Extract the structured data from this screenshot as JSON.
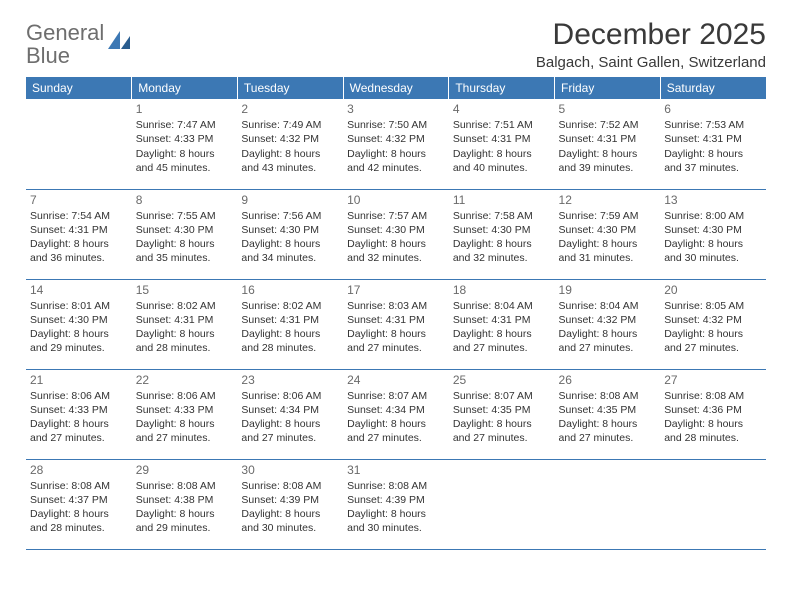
{
  "logo": {
    "text_gray": "General",
    "text_blue": "Blue"
  },
  "header": {
    "title": "December 2025",
    "subtitle": "Balgach, Saint Gallen, Switzerland"
  },
  "colors": {
    "header_bg": "#3c78b4",
    "header_fg": "#ffffff",
    "rule": "#3c78b4",
    "text": "#333333",
    "daynum": "#6a6a6a",
    "logo_gray": "#6e6e6e",
    "logo_blue": "#3c78b4"
  },
  "day_labels": [
    "Sunday",
    "Monday",
    "Tuesday",
    "Wednesday",
    "Thursday",
    "Friday",
    "Saturday"
  ],
  "weeks": [
    [
      null,
      {
        "n": "1",
        "sr": "7:47 AM",
        "ss": "4:33 PM",
        "dl": "8 hours and 45 minutes."
      },
      {
        "n": "2",
        "sr": "7:49 AM",
        "ss": "4:32 PM",
        "dl": "8 hours and 43 minutes."
      },
      {
        "n": "3",
        "sr": "7:50 AM",
        "ss": "4:32 PM",
        "dl": "8 hours and 42 minutes."
      },
      {
        "n": "4",
        "sr": "7:51 AM",
        "ss": "4:31 PM",
        "dl": "8 hours and 40 minutes."
      },
      {
        "n": "5",
        "sr": "7:52 AM",
        "ss": "4:31 PM",
        "dl": "8 hours and 39 minutes."
      },
      {
        "n": "6",
        "sr": "7:53 AM",
        "ss": "4:31 PM",
        "dl": "8 hours and 37 minutes."
      }
    ],
    [
      {
        "n": "7",
        "sr": "7:54 AM",
        "ss": "4:31 PM",
        "dl": "8 hours and 36 minutes."
      },
      {
        "n": "8",
        "sr": "7:55 AM",
        "ss": "4:30 PM",
        "dl": "8 hours and 35 minutes."
      },
      {
        "n": "9",
        "sr": "7:56 AM",
        "ss": "4:30 PM",
        "dl": "8 hours and 34 minutes."
      },
      {
        "n": "10",
        "sr": "7:57 AM",
        "ss": "4:30 PM",
        "dl": "8 hours and 32 minutes."
      },
      {
        "n": "11",
        "sr": "7:58 AM",
        "ss": "4:30 PM",
        "dl": "8 hours and 32 minutes."
      },
      {
        "n": "12",
        "sr": "7:59 AM",
        "ss": "4:30 PM",
        "dl": "8 hours and 31 minutes."
      },
      {
        "n": "13",
        "sr": "8:00 AM",
        "ss": "4:30 PM",
        "dl": "8 hours and 30 minutes."
      }
    ],
    [
      {
        "n": "14",
        "sr": "8:01 AM",
        "ss": "4:30 PM",
        "dl": "8 hours and 29 minutes."
      },
      {
        "n": "15",
        "sr": "8:02 AM",
        "ss": "4:31 PM",
        "dl": "8 hours and 28 minutes."
      },
      {
        "n": "16",
        "sr": "8:02 AM",
        "ss": "4:31 PM",
        "dl": "8 hours and 28 minutes."
      },
      {
        "n": "17",
        "sr": "8:03 AM",
        "ss": "4:31 PM",
        "dl": "8 hours and 27 minutes."
      },
      {
        "n": "18",
        "sr": "8:04 AM",
        "ss": "4:31 PM",
        "dl": "8 hours and 27 minutes."
      },
      {
        "n": "19",
        "sr": "8:04 AM",
        "ss": "4:32 PM",
        "dl": "8 hours and 27 minutes."
      },
      {
        "n": "20",
        "sr": "8:05 AM",
        "ss": "4:32 PM",
        "dl": "8 hours and 27 minutes."
      }
    ],
    [
      {
        "n": "21",
        "sr": "8:06 AM",
        "ss": "4:33 PM",
        "dl": "8 hours and 27 minutes."
      },
      {
        "n": "22",
        "sr": "8:06 AM",
        "ss": "4:33 PM",
        "dl": "8 hours and 27 minutes."
      },
      {
        "n": "23",
        "sr": "8:06 AM",
        "ss": "4:34 PM",
        "dl": "8 hours and 27 minutes."
      },
      {
        "n": "24",
        "sr": "8:07 AM",
        "ss": "4:34 PM",
        "dl": "8 hours and 27 minutes."
      },
      {
        "n": "25",
        "sr": "8:07 AM",
        "ss": "4:35 PM",
        "dl": "8 hours and 27 minutes."
      },
      {
        "n": "26",
        "sr": "8:08 AM",
        "ss": "4:35 PM",
        "dl": "8 hours and 27 minutes."
      },
      {
        "n": "27",
        "sr": "8:08 AM",
        "ss": "4:36 PM",
        "dl": "8 hours and 28 minutes."
      }
    ],
    [
      {
        "n": "28",
        "sr": "8:08 AM",
        "ss": "4:37 PM",
        "dl": "8 hours and 28 minutes."
      },
      {
        "n": "29",
        "sr": "8:08 AM",
        "ss": "4:38 PM",
        "dl": "8 hours and 29 minutes."
      },
      {
        "n": "30",
        "sr": "8:08 AM",
        "ss": "4:39 PM",
        "dl": "8 hours and 30 minutes."
      },
      {
        "n": "31",
        "sr": "8:08 AM",
        "ss": "4:39 PM",
        "dl": "8 hours and 30 minutes."
      },
      null,
      null,
      null
    ]
  ],
  "prefixes": {
    "sunrise": "Sunrise: ",
    "sunset": "Sunset: ",
    "daylight": "Daylight: "
  }
}
